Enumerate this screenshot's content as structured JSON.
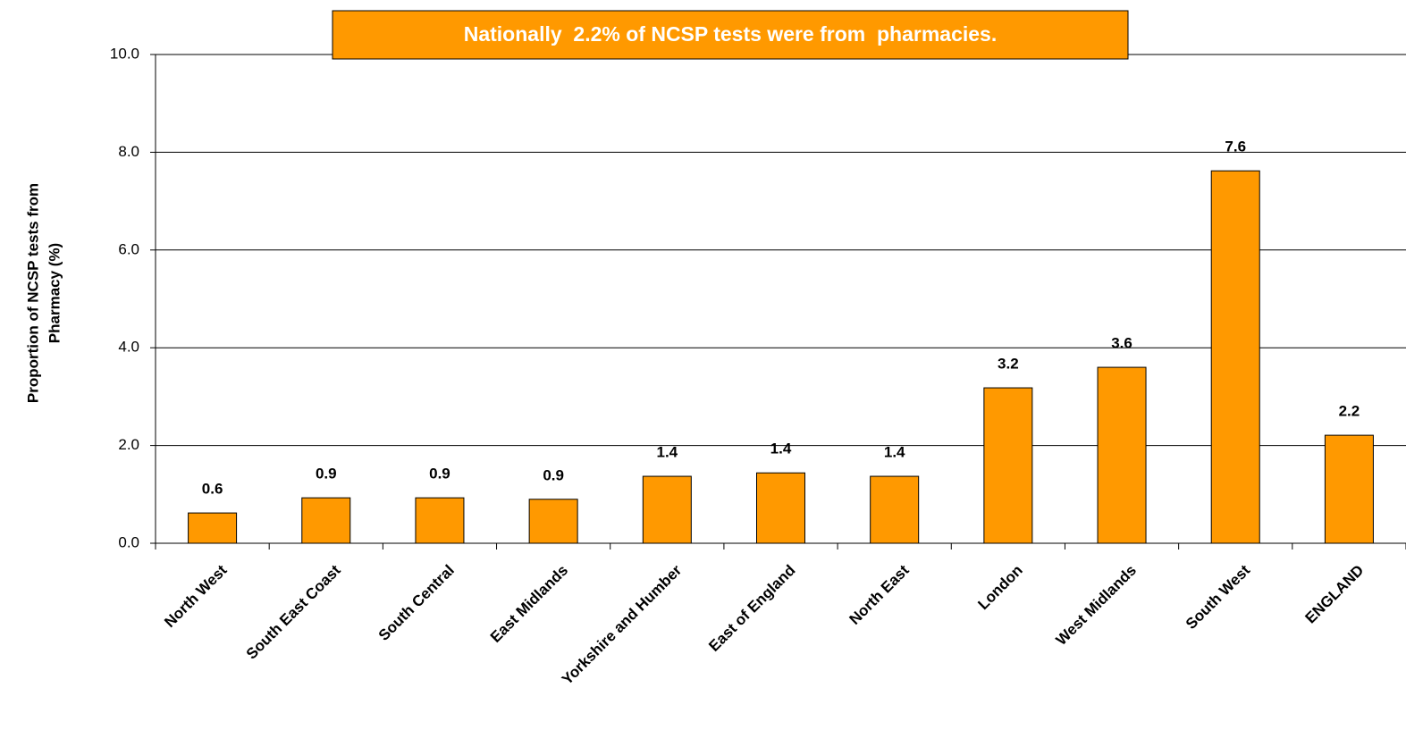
{
  "chart_data": {
    "type": "bar",
    "title": "Nationally  2.2% of NCSP tests were from  pharmacies.",
    "y_label": [
      "Proportion of NCSP tests from",
      "Pharmacy (%)"
    ],
    "categories": [
      "North West",
      "South East Coast",
      "South Central",
      "East Midlands",
      "Yorkshire and Humber",
      "East of England",
      "North East",
      "London",
      "West Midlands",
      "South West",
      "ENGLAND"
    ],
    "values": [
      0.62,
      0.93,
      0.93,
      0.9,
      1.37,
      1.44,
      1.37,
      3.18,
      3.6,
      7.62,
      2.21
    ],
    "value_labels": [
      "0.6",
      "0.9",
      "0.9",
      "0.9",
      "1.4",
      "1.4",
      "1.4",
      "3.2",
      "3.6",
      "7.6",
      "2.2"
    ],
    "color": "#ff9900",
    "ylim": [
      0,
      10
    ],
    "yticks": [
      {
        "value": 0,
        "label": "0.0"
      },
      {
        "value": 2,
        "label": "2.0"
      },
      {
        "value": 4,
        "label": "4.0"
      },
      {
        "value": 6,
        "label": "6.0"
      },
      {
        "value": 8,
        "label": "8.0"
      },
      {
        "value": 10,
        "label": "10.0"
      }
    ],
    "grid": true
  }
}
